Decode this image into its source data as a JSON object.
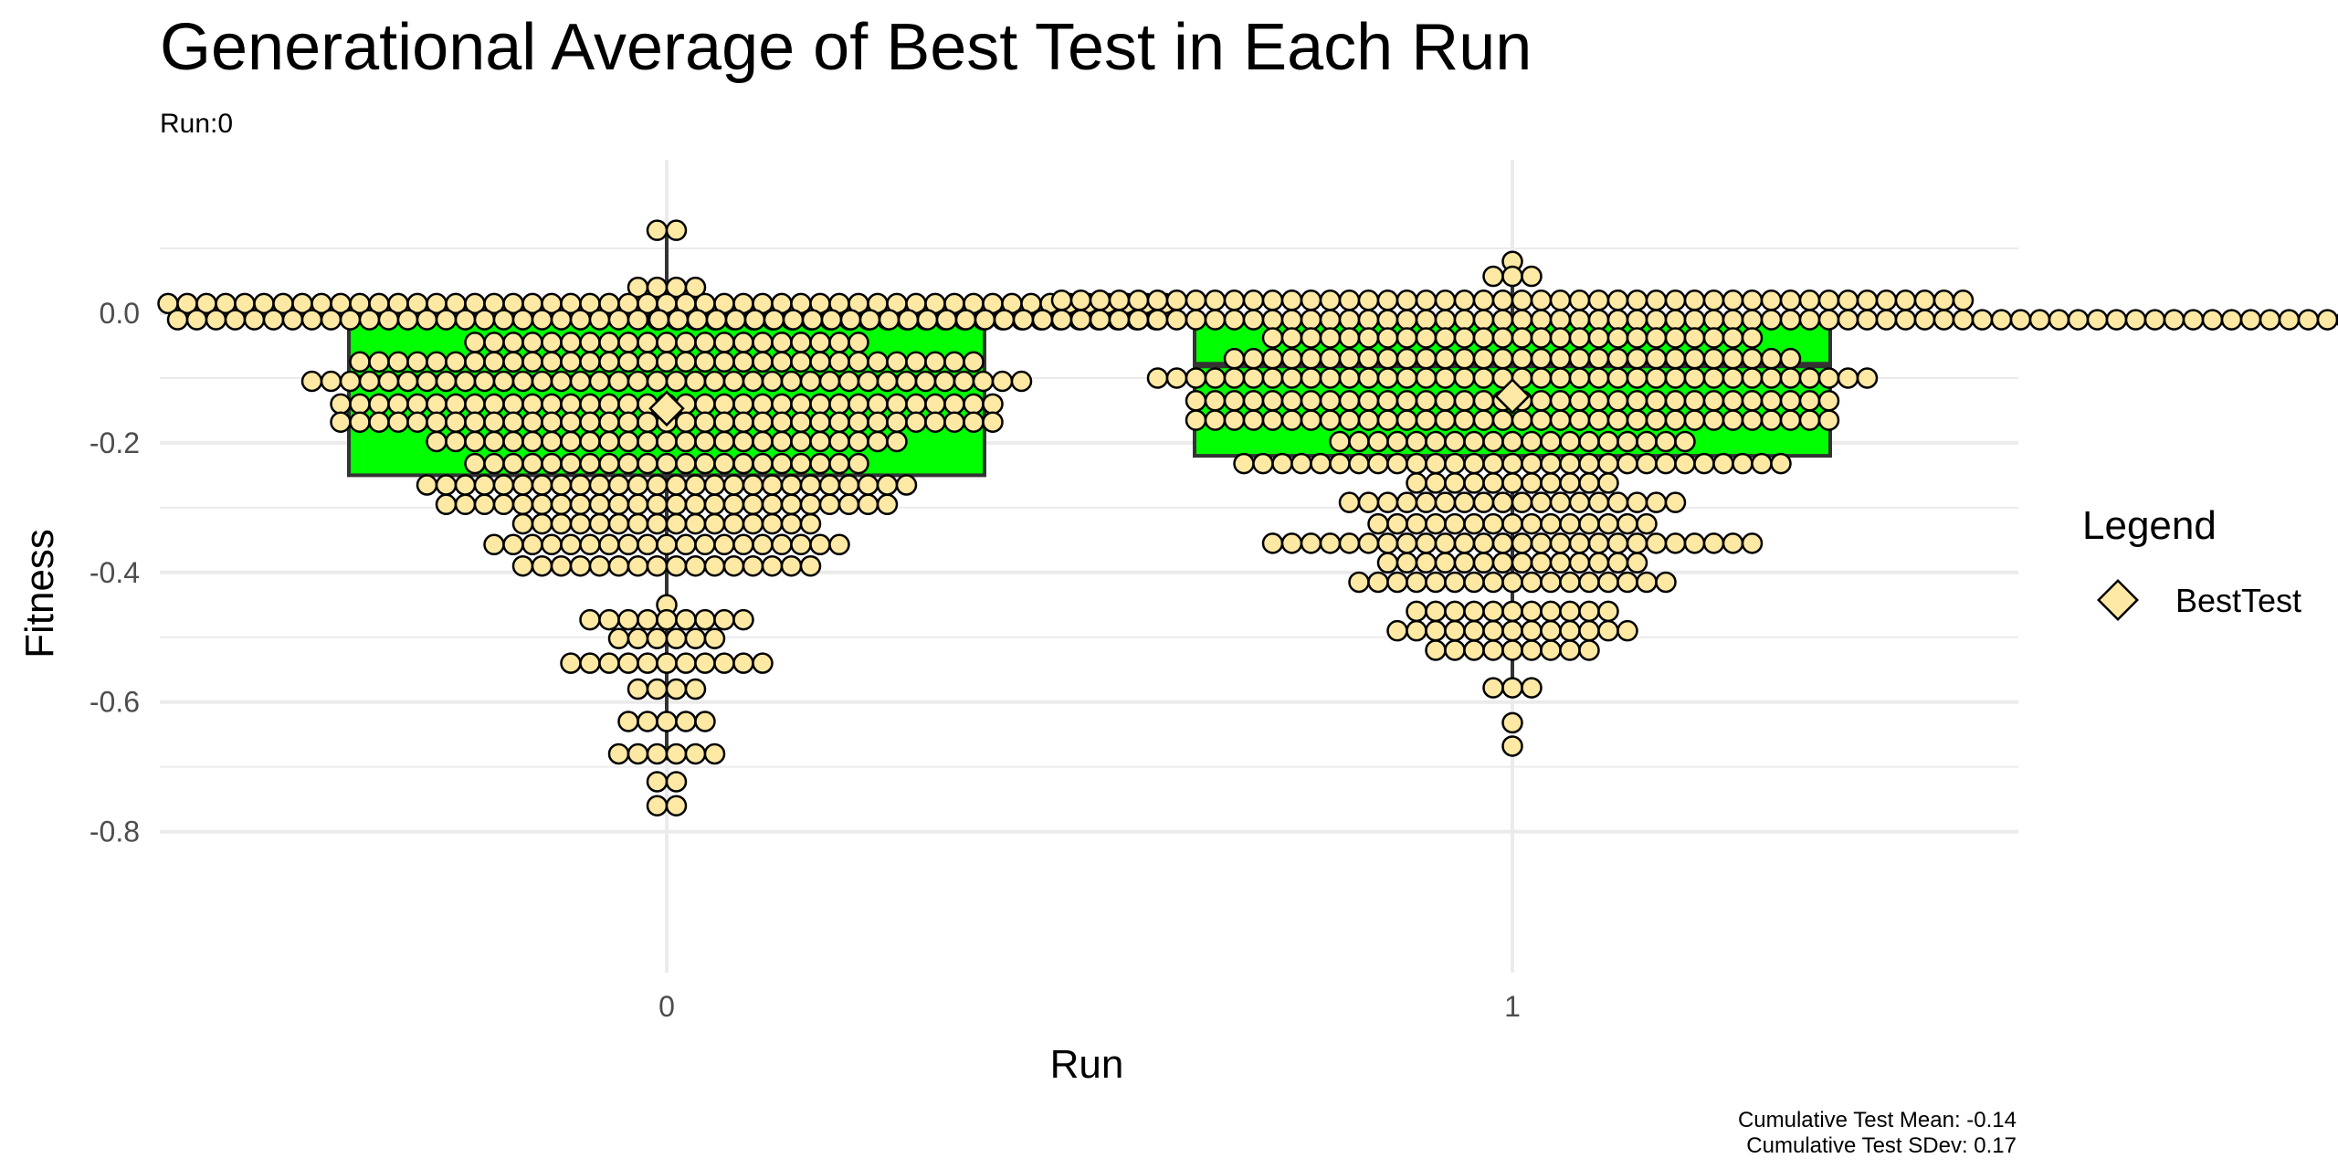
{
  "chart_data": {
    "type": "box+dotplot",
    "title": "Generational Average of Best Test in Each Run",
    "subtitle": "Run:0",
    "xlabel": "Run",
    "ylabel": "Fitness",
    "categories": [
      "0",
      "1"
    ],
    "ylim": [
      -0.85,
      0.18
    ],
    "yticks": [
      0.0,
      -0.2,
      -0.4,
      -0.6,
      -0.8
    ],
    "ytick_labels": [
      "0.0",
      "-0.2",
      "-0.4",
      "-0.6",
      "-0.8"
    ],
    "grid": true,
    "colors": {
      "box_fill": "#00ff00",
      "box_line": "#333333",
      "dot_fill": "#fde9a3",
      "dot_line": "#000000",
      "grid": "#ebebeb"
    },
    "boxes": [
      {
        "run": "0",
        "lower_whisker": -0.69,
        "q1": -0.25,
        "median": -0.1,
        "q3": -0.01,
        "upper_whisker": 0.13,
        "mean": -0.147
      },
      {
        "run": "1",
        "lower_whisker": -0.575,
        "q1": -0.22,
        "median": -0.08,
        "q3": -0.01,
        "upper_whisker": 0.08,
        "mean": -0.128
      }
    ],
    "dot_rows": [
      {
        "run": "0",
        "rows": [
          [
            0.128,
            2
          ],
          [
            0.04,
            4
          ],
          [
            0.015,
            53
          ],
          [
            -0.01,
            52
          ],
          [
            -0.045,
            21
          ],
          [
            -0.075,
            33
          ],
          [
            -0.105,
            38
          ],
          [
            -0.14,
            35
          ],
          [
            -0.168,
            35
          ],
          [
            -0.198,
            25
          ],
          [
            -0.232,
            21
          ],
          [
            -0.265,
            26
          ],
          [
            -0.295,
            24
          ],
          [
            -0.325,
            16
          ],
          [
            -0.357,
            19
          ],
          [
            -0.39,
            16
          ],
          [
            -0.45,
            1
          ],
          [
            -0.473,
            9
          ],
          [
            -0.502,
            6
          ],
          [
            -0.54,
            11
          ],
          [
            -0.58,
            4
          ],
          [
            -0.63,
            5
          ],
          [
            -0.68,
            6
          ],
          [
            -0.723,
            2
          ],
          [
            -0.76,
            2
          ]
        ]
      },
      {
        "run": "1",
        "rows": [
          [
            0.08,
            1
          ],
          [
            0.057,
            3
          ],
          [
            0.02,
            48
          ],
          [
            -0.01,
            90
          ],
          [
            -0.038,
            26
          ],
          [
            -0.07,
            30
          ],
          [
            -0.1,
            38
          ],
          [
            -0.135,
            34
          ],
          [
            -0.165,
            34
          ],
          [
            -0.198,
            19
          ],
          [
            -0.232,
            29
          ],
          [
            -0.262,
            11
          ],
          [
            -0.292,
            18
          ],
          [
            -0.325,
            15
          ],
          [
            -0.355,
            26
          ],
          [
            -0.385,
            14
          ],
          [
            -0.415,
            17
          ],
          [
            -0.46,
            11
          ],
          [
            -0.49,
            13
          ],
          [
            -0.52,
            9
          ],
          [
            -0.578,
            3
          ],
          [
            -0.632,
            1
          ],
          [
            -0.668,
            1
          ]
        ]
      }
    ],
    "legend": {
      "title": "Legend",
      "items": [
        {
          "label": "BestTest",
          "marker": "diamond"
        }
      ],
      "position": "right"
    },
    "caption_lines": [
      "Cumulative Test Mean: -0.14",
      "Cumulative Test SDev: 0.17"
    ]
  }
}
